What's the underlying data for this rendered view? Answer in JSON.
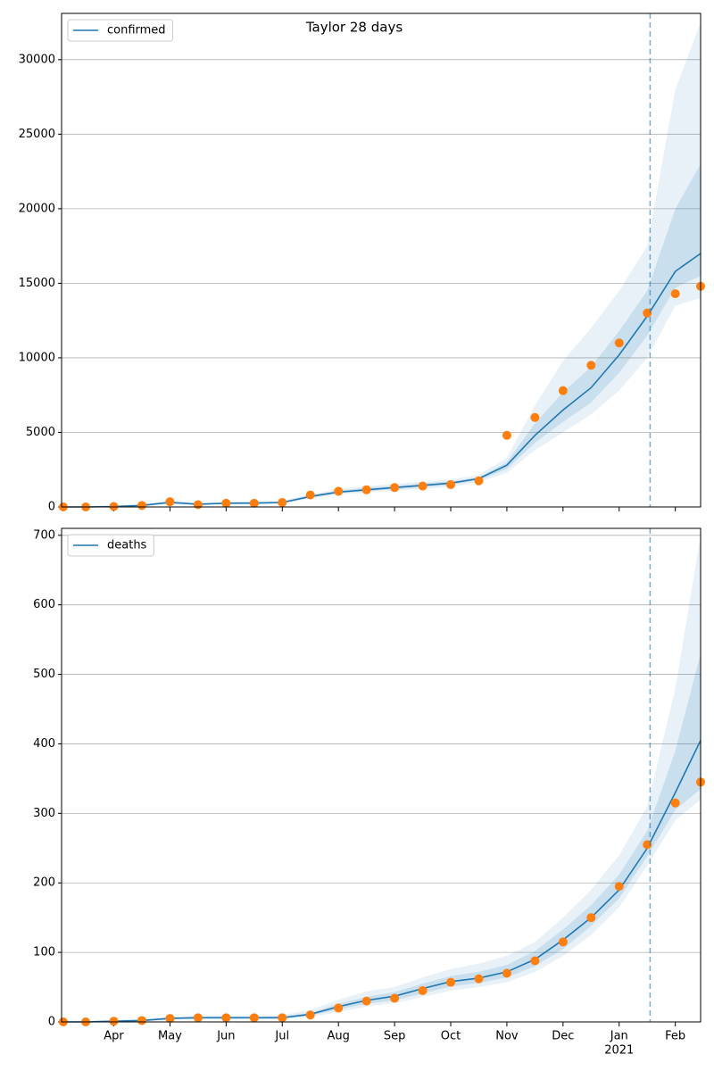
{
  "chart_data": [
    {
      "type": "line",
      "title": "Taylor 28 days",
      "x": [
        3.1,
        3.5,
        4,
        4.5,
        5,
        5.5,
        6,
        6.5,
        7,
        7.5,
        8,
        8.5,
        9,
        9.5,
        10,
        10.5,
        11,
        11.5,
        12,
        12.5,
        13,
        13.5,
        14,
        14.45
      ],
      "series": [
        {
          "name": "confirmed",
          "color": "#1f77b4",
          "values": [
            0,
            0,
            30,
            100,
            300,
            180,
            250,
            260,
            300,
            700,
            1000,
            1150,
            1300,
            1450,
            1600,
            1900,
            2800,
            4800,
            6500,
            8000,
            10200,
            12800,
            15800,
            17000
          ]
        }
      ],
      "observed": {
        "color": "#ff7f0e",
        "values": [
          0,
          0,
          30,
          100,
          350,
          150,
          250,
          250,
          300,
          800,
          1050,
          1150,
          1300,
          1400,
          1500,
          1750,
          4800,
          6000,
          7800,
          9500,
          11000,
          13000,
          14300,
          14800
        ]
      },
      "bands": [
        {
          "color": "#1f77b4",
          "opacity": 0.1,
          "upper": [
            50,
            50,
            80,
            180,
            450,
            300,
            350,
            370,
            420,
            850,
            1200,
            1400,
            1550,
            1700,
            1850,
            2150,
            3300,
            6800,
            9800,
            12000,
            14500,
            17500,
            28000,
            32500
          ],
          "lower": [
            0,
            0,
            0,
            30,
            200,
            100,
            180,
            180,
            200,
            550,
            850,
            950,
            1100,
            1200,
            1350,
            1650,
            2300,
            3800,
            5000,
            6200,
            7800,
            10000,
            13500,
            14000
          ]
        },
        {
          "color": "#1f77b4",
          "opacity": 0.15,
          "upper": [
            20,
            20,
            50,
            140,
            380,
            240,
            300,
            310,
            360,
            780,
            1100,
            1280,
            1420,
            1570,
            1720,
            2000,
            3000,
            5600,
            7700,
            9400,
            11800,
            14500,
            20000,
            23000
          ],
          "lower": [
            0,
            0,
            10,
            70,
            250,
            140,
            220,
            220,
            250,
            620,
            920,
            1050,
            1200,
            1320,
            1480,
            1780,
            2550,
            4300,
            5700,
            7000,
            9000,
            11500,
            14700,
            15500
          ]
        }
      ],
      "vline_x": 13.55,
      "xlim": [
        3.07,
        14.45
      ],
      "xticks": [
        4,
        5,
        6,
        7,
        8,
        9,
        10,
        11,
        12,
        13,
        14
      ],
      "ylim": [
        0,
        33100
      ],
      "yticks": [
        0,
        5000,
        10000,
        15000,
        20000,
        25000,
        30000
      ],
      "grid": true,
      "legend": "upper left"
    },
    {
      "type": "line",
      "x": [
        3.1,
        3.5,
        4,
        4.5,
        5,
        5.5,
        6,
        6.5,
        7,
        7.5,
        8,
        8.5,
        9,
        9.5,
        10,
        10.5,
        11,
        11.5,
        12,
        12.5,
        13,
        13.5,
        14,
        14.45
      ],
      "series": [
        {
          "name": "deaths",
          "color": "#1f77b4",
          "values": [
            0,
            0,
            1,
            2,
            5,
            6,
            6,
            6,
            6,
            11,
            22,
            31,
            37,
            48,
            58,
            63,
            72,
            90,
            118,
            150,
            190,
            250,
            330,
            405
          ]
        }
      ],
      "observed": {
        "color": "#ff7f0e",
        "values": [
          0,
          0,
          1,
          2,
          5,
          6,
          6,
          6,
          6,
          10,
          20,
          30,
          34,
          45,
          57,
          62,
          70,
          88,
          115,
          150,
          195,
          255,
          315,
          345
        ]
      },
      "bands": [
        {
          "color": "#1f77b4",
          "opacity": 0.1,
          "upper": [
            2,
            2,
            3,
            4,
            8,
            9,
            9,
            9,
            10,
            17,
            32,
            44,
            50,
            64,
            76,
            84,
            95,
            115,
            150,
            190,
            240,
            310,
            480,
            700
          ],
          "lower": [
            0,
            0,
            0,
            1,
            3,
            4,
            4,
            4,
            4,
            7,
            14,
            22,
            27,
            36,
            45,
            50,
            57,
            72,
            95,
            125,
            165,
            225,
            290,
            320
          ]
        },
        {
          "color": "#1f77b4",
          "opacity": 0.15,
          "upper": [
            1,
            1,
            2,
            3,
            6,
            7,
            7,
            7,
            8,
            13,
            26,
            36,
            43,
            55,
            66,
            72,
            82,
            102,
            133,
            168,
            212,
            275,
            390,
            530
          ],
          "lower": [
            0,
            0,
            1,
            1,
            4,
            5,
            5,
            5,
            5,
            9,
            18,
            26,
            31,
            41,
            51,
            56,
            64,
            80,
            105,
            138,
            178,
            238,
            305,
            335
          ]
        }
      ],
      "vline_x": 13.55,
      "xlim": [
        3.07,
        14.45
      ],
      "xticks": [
        {
          "value": 4,
          "label": "Apr"
        },
        {
          "value": 5,
          "label": "May"
        },
        {
          "value": 6,
          "label": "Jun"
        },
        {
          "value": 7,
          "label": "Jul"
        },
        {
          "value": 8,
          "label": "Aug"
        },
        {
          "value": 9,
          "label": "Sep"
        },
        {
          "value": 10,
          "label": "Oct"
        },
        {
          "value": 11,
          "label": "Nov"
        },
        {
          "value": 12,
          "label": "Dec"
        },
        {
          "value": 13,
          "label": "Jan"
        },
        {
          "value": 14,
          "label": "Feb"
        }
      ],
      "x_sublabel": "2021",
      "ylim": [
        0,
        710
      ],
      "yticks": [
        0,
        100,
        200,
        300,
        400,
        500,
        600,
        700
      ],
      "grid": true,
      "legend": "upper left"
    }
  ]
}
